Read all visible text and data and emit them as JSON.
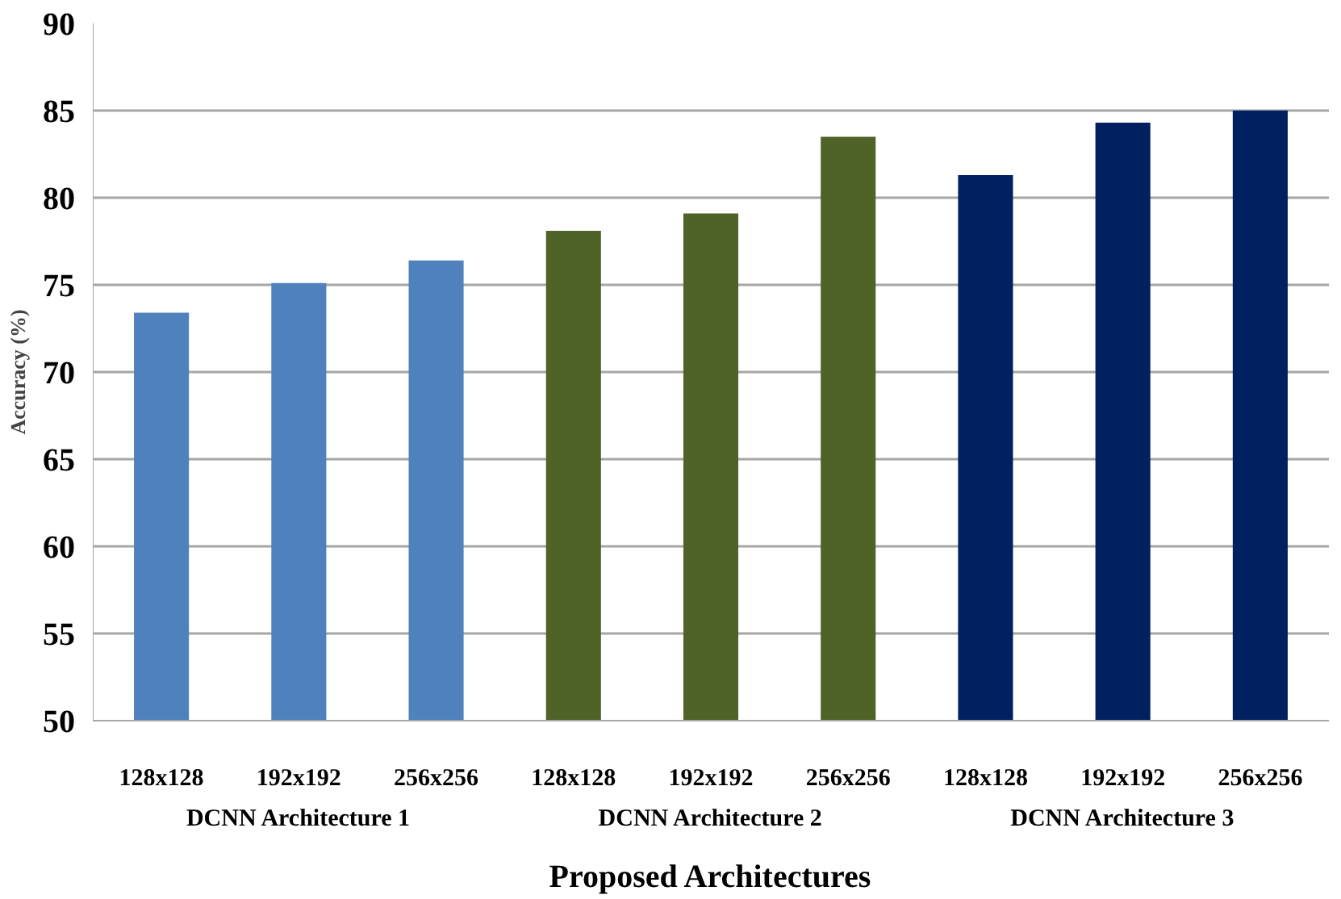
{
  "chart_data": {
    "type": "bar",
    "xlabel": "Proposed Architectures",
    "ylabel": "Accuracy (%)",
    "categories": [
      "128x128",
      "192x192",
      "256x256",
      "128x128",
      "192x192",
      "256x256",
      "128x128",
      "192x192",
      "256x256"
    ],
    "values": [
      73.4,
      75.1,
      76.4,
      78.1,
      79.1,
      83.5,
      81.3,
      84.3,
      85.0
    ],
    "colors": [
      "#4f81bd",
      "#4f81bd",
      "#4f81bd",
      "#4f6228",
      "#4f6228",
      "#4f6228",
      "#002060",
      "#002060",
      "#002060"
    ],
    "ylim": [
      50,
      90
    ],
    "yticks": [
      50,
      55,
      60,
      65,
      70,
      75,
      80,
      85,
      90
    ],
    "grid": "y",
    "annotations": [
      "DCNN Architecture 1",
      "DCNN Architecture 2",
      "DCNN Architecture 3"
    ]
  }
}
